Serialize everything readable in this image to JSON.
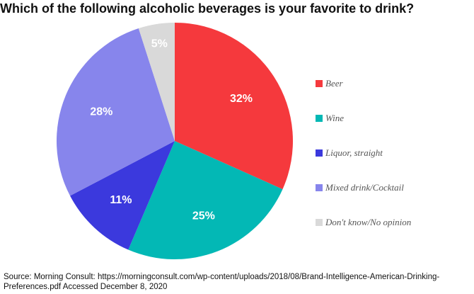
{
  "chart_data": {
    "type": "pie",
    "title": "Which of the following alcoholic beverages is your favorite to drink?",
    "slices": [
      {
        "label": "Beer",
        "value": 32,
        "display": "32%",
        "color": "#f5393d"
      },
      {
        "label": "Wine",
        "value": 25,
        "display": "25%",
        "color": "#03b8b5"
      },
      {
        "label": "Liquor, straight",
        "value": 11,
        "display": "11%",
        "color": "#3b39dd"
      },
      {
        "label": "Mixed drink/Cocktail",
        "value": 28,
        "display": "28%",
        "color": "#8785ec"
      },
      {
        "label": "Don't know/No opinion",
        "value": 5,
        "display": "5%",
        "color": "#d9d9d9"
      }
    ],
    "legend_position": "right"
  },
  "source": "Source: Morning Consult: https://morningconsult.com/wp-content/uploads/2018/08/Brand-Intelligence-American-Drinking-Preferences.pdf Accessed December 8, 2020"
}
